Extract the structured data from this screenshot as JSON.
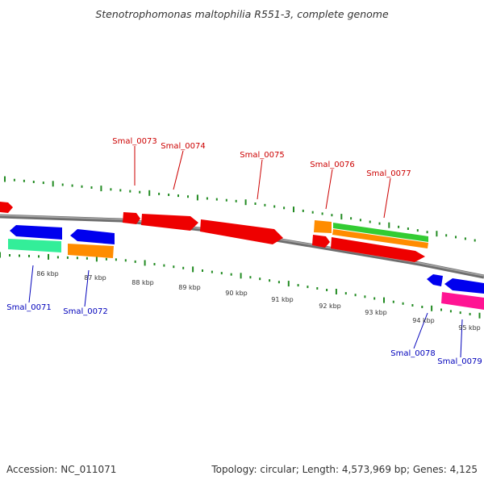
{
  "title": "Stenotrophomonas maltophilia R551-3, complete genome",
  "footer": {
    "accession": "Accession: NC_011071",
    "topology": "Topology: circular; Length: 4,573,969 bp; Genes: 4,125"
  },
  "colors": {
    "backbone": "#808080",
    "ticks": "#228b22",
    "label_top": "#cc0000",
    "label_bottom": "#0000bb",
    "red": "#ee0000",
    "blue": "#0000ee",
    "orange": "#ff8c00",
    "green": "#33cc33",
    "teal": "#33ee99",
    "magenta": "#ff1493"
  },
  "scale_labels": [
    "86 kbp",
    "87 kbp",
    "88 kbp",
    "89 kbp",
    "90 kbp",
    "91 kbp",
    "92 kbp",
    "93 kbp",
    "94 kbp",
    "95 kbp"
  ],
  "gene_labels_top": [
    "Smal_0073",
    "Smal_0074",
    "Smal_0075",
    "Smal_0076",
    "Smal_0077"
  ],
  "gene_labels_bottom": [
    "Smal_0071",
    "Smal_0072",
    "Smal_0078",
    "Smal_0079"
  ]
}
